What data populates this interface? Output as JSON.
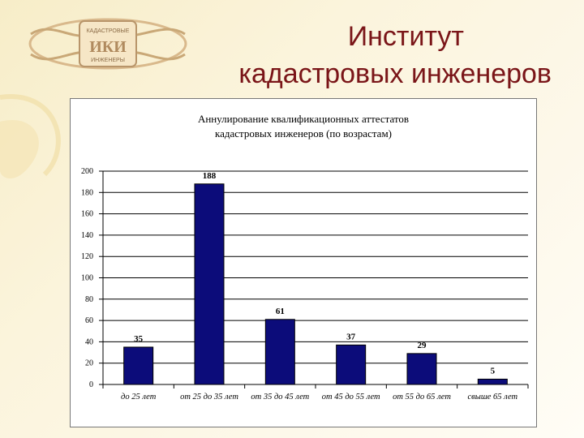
{
  "header": {
    "title_line1": "Институт",
    "title_line2": "кадастровых инженеров"
  },
  "logo": {
    "text_top": "КАДАСТРОВЫЕ",
    "text_mid": "ИКИ",
    "text_bottom": "ИНЖЕНЕРЫ"
  },
  "colors": {
    "title": "#7a1518",
    "bar": "#0c0c7a",
    "background": "#fbf4dc"
  },
  "chart_data": {
    "type": "bar",
    "title_line1": "Аннулирование квалификационных аттестатов",
    "title_line2": "кадастровых инженеров (по возрастам)",
    "categories": [
      "до 25 лет",
      "от 25 до 35 лет",
      "от 35 до 45 лет",
      "от 45 до 55 лет",
      "от 55 до 65 лет",
      "свыше 65 лет"
    ],
    "values": [
      35,
      188,
      61,
      37,
      29,
      5
    ],
    "ylim": [
      0,
      200
    ],
    "yticks": [
      "0",
      "20",
      "40",
      "60",
      "80",
      "100",
      "120",
      "140",
      "160",
      "180",
      "200"
    ],
    "grid": true,
    "data_labels": true
  }
}
